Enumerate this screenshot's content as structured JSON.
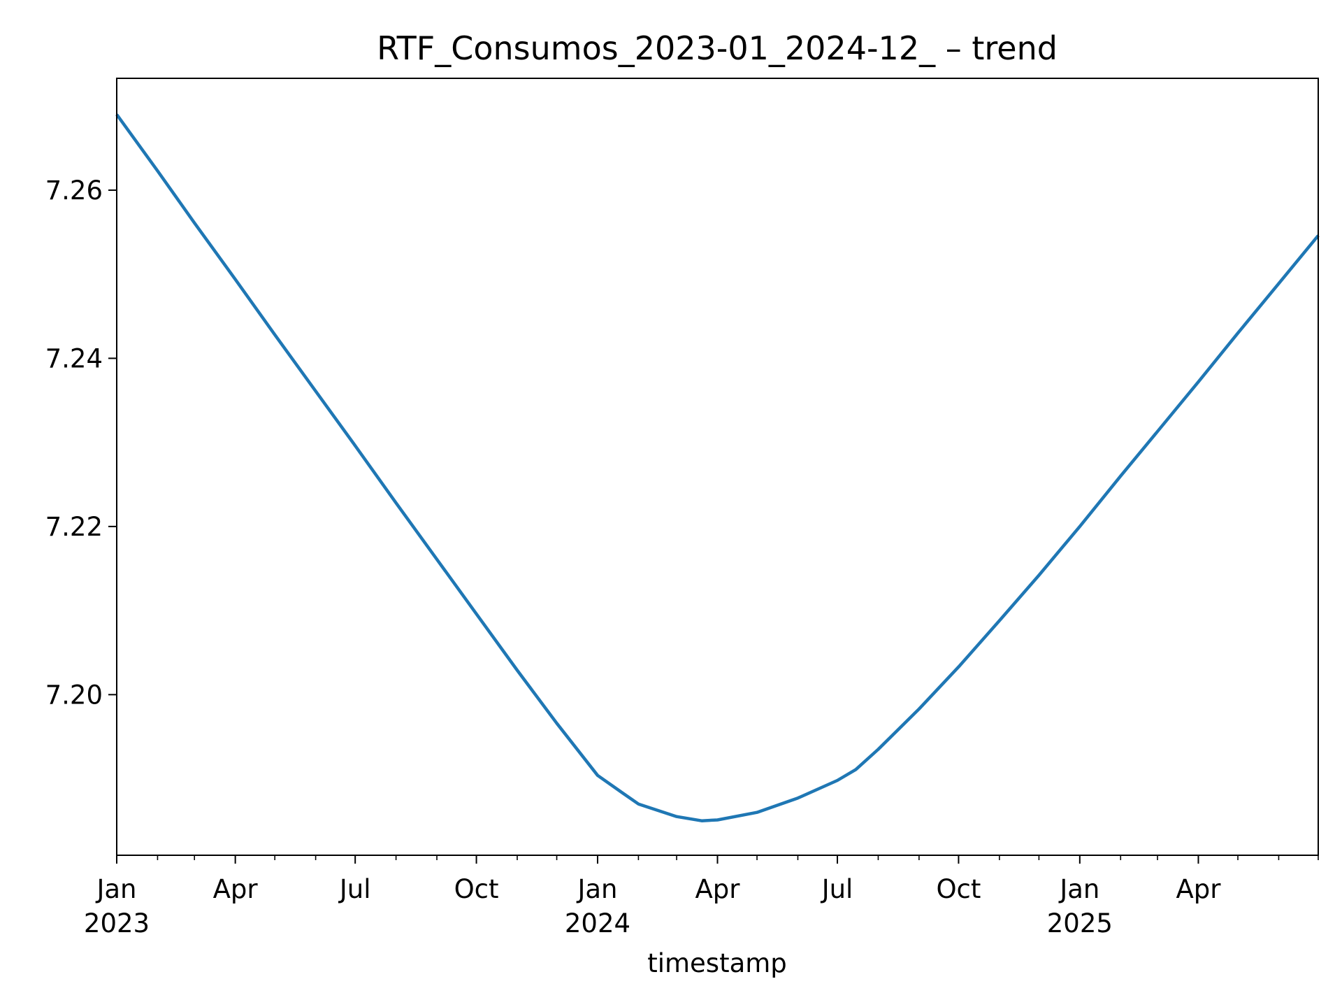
{
  "chart_data": {
    "type": "line",
    "title": "RTF_Consumos_2023-01_2024-12_ – trend",
    "xlabel": "timestamp",
    "ylabel": "",
    "x_range": [
      "2023-01-01",
      "2025-07-01"
    ],
    "ylim": [
      7.1809,
      7.2733
    ],
    "grid": false,
    "line_color": "#1f77b4",
    "y_ticks": [
      {
        "value": 7.2,
        "label": "7.20"
      },
      {
        "value": 7.22,
        "label": "7.22"
      },
      {
        "value": 7.24,
        "label": "7.24"
      },
      {
        "value": 7.26,
        "label": "7.26"
      }
    ],
    "x_major_ticks": [
      {
        "date": "2023-01-01",
        "label": "Jan",
        "year": "2023"
      },
      {
        "date": "2023-04-01",
        "label": "Apr",
        "year": ""
      },
      {
        "date": "2023-07-01",
        "label": "Jul",
        "year": ""
      },
      {
        "date": "2023-10-01",
        "label": "Oct",
        "year": ""
      },
      {
        "date": "2024-01-01",
        "label": "Jan",
        "year": "2024"
      },
      {
        "date": "2024-04-01",
        "label": "Apr",
        "year": ""
      },
      {
        "date": "2024-07-01",
        "label": "Jul",
        "year": ""
      },
      {
        "date": "2024-10-01",
        "label": "Oct",
        "year": ""
      },
      {
        "date": "2025-01-01",
        "label": "Jan",
        "year": "2025"
      },
      {
        "date": "2025-04-01",
        "label": "Apr",
        "year": ""
      }
    ],
    "x_minor_ticks": [
      "2023-02-01",
      "2023-03-01",
      "2023-05-01",
      "2023-06-01",
      "2023-08-01",
      "2023-09-01",
      "2023-11-01",
      "2023-12-01",
      "2024-02-01",
      "2024-03-01",
      "2024-05-01",
      "2024-06-01",
      "2024-08-01",
      "2024-09-01",
      "2024-11-01",
      "2024-12-01",
      "2025-02-01",
      "2025-03-01",
      "2025-05-01",
      "2025-06-01",
      "2025-07-01"
    ],
    "series": [
      {
        "points": [
          {
            "x": "2023-01-01",
            "y": 7.269
          },
          {
            "x": "2023-02-01",
            "y": 7.2623
          },
          {
            "x": "2023-03-01",
            "y": 7.2561
          },
          {
            "x": "2023-04-01",
            "y": 7.2494
          },
          {
            "x": "2023-05-01",
            "y": 7.2428
          },
          {
            "x": "2023-06-01",
            "y": 7.2361
          },
          {
            "x": "2023-07-01",
            "y": 7.2296
          },
          {
            "x": "2023-08-01",
            "y": 7.2228
          },
          {
            "x": "2023-09-01",
            "y": 7.2161
          },
          {
            "x": "2023-10-01",
            "y": 7.2096
          },
          {
            "x": "2023-11-01",
            "y": 7.2029
          },
          {
            "x": "2023-12-01",
            "y": 7.1966
          },
          {
            "x": "2024-01-01",
            "y": 7.1904
          },
          {
            "x": "2024-01-20",
            "y": 7.1883
          },
          {
            "x": "2024-02-01",
            "y": 7.187
          },
          {
            "x": "2024-03-01",
            "y": 7.1855
          },
          {
            "x": "2024-03-20",
            "y": 7.185
          },
          {
            "x": "2024-04-01",
            "y": 7.1851
          },
          {
            "x": "2024-05-01",
            "y": 7.186
          },
          {
            "x": "2024-06-01",
            "y": 7.1877
          },
          {
            "x": "2024-07-01",
            "y": 7.1898
          },
          {
            "x": "2024-07-15",
            "y": 7.1911
          },
          {
            "x": "2024-08-01",
            "y": 7.1935
          },
          {
            "x": "2024-09-01",
            "y": 7.1983
          },
          {
            "x": "2024-10-01",
            "y": 7.2033
          },
          {
            "x": "2024-11-01",
            "y": 7.2088
          },
          {
            "x": "2024-12-01",
            "y": 7.2142
          },
          {
            "x": "2025-01-01",
            "y": 7.22
          },
          {
            "x": "2025-02-01",
            "y": 7.226
          },
          {
            "x": "2025-03-01",
            "y": 7.2313
          },
          {
            "x": "2025-04-01",
            "y": 7.2372
          },
          {
            "x": "2025-05-01",
            "y": 7.243
          },
          {
            "x": "2025-06-01",
            "y": 7.2489
          },
          {
            "x": "2025-07-01",
            "y": 7.2546
          }
        ]
      }
    ]
  }
}
